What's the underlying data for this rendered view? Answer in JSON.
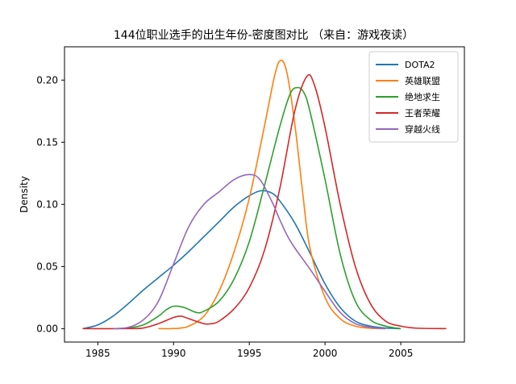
{
  "chart_data": {
    "type": "line",
    "title": "144位职业选手的出生年份-密度图对比 （来自：游戏夜读）",
    "xlabel": "",
    "ylabel": "Density",
    "xlim": [
      1982.8,
      2009.2
    ],
    "ylim": [
      -0.0108,
      0.2268
    ],
    "x_ticks": [
      1985,
      1990,
      1995,
      2000,
      2005
    ],
    "y_ticks": [
      0.0,
      0.05,
      0.1,
      0.15,
      0.2
    ],
    "x_tick_labels": [
      "1985",
      "1990",
      "1995",
      "2000",
      "2005"
    ],
    "y_tick_labels": [
      "0.00",
      "0.05",
      "0.10",
      "0.15",
      "0.20"
    ],
    "grid": false,
    "legend_position": "top-right",
    "series": [
      {
        "name": "DOTA2",
        "color": "#1f77b4",
        "points": [
          [
            1984,
            0.0
          ],
          [
            1985,
            0.003
          ],
          [
            1986,
            0.01
          ],
          [
            1987,
            0.02
          ],
          [
            1988,
            0.031
          ],
          [
            1989,
            0.041
          ],
          [
            1990,
            0.051
          ],
          [
            1991,
            0.062
          ],
          [
            1992,
            0.074
          ],
          [
            1993,
            0.086
          ],
          [
            1994,
            0.098
          ],
          [
            1995,
            0.107
          ],
          [
            1995.8,
            0.111
          ],
          [
            1996.5,
            0.109
          ],
          [
            1997,
            0.103
          ],
          [
            1998,
            0.085
          ],
          [
            1999,
            0.061
          ],
          [
            2000,
            0.036
          ],
          [
            2001,
            0.017
          ],
          [
            2002,
            0.006
          ],
          [
            2003,
            0.002
          ],
          [
            2004,
            0.0005
          ],
          [
            2005,
            0.0
          ]
        ]
      },
      {
        "name": "英雄联盟",
        "color": "#ff7f0e",
        "points": [
          [
            1989,
            0.0
          ],
          [
            1990,
            0.0
          ],
          [
            1990.5,
            0.0005
          ],
          [
            1991,
            0.002
          ],
          [
            1992,
            0.01
          ],
          [
            1993,
            0.03
          ],
          [
            1994,
            0.062
          ],
          [
            1995,
            0.105
          ],
          [
            1996,
            0.163
          ],
          [
            1996.7,
            0.205
          ],
          [
            1997.1,
            0.216
          ],
          [
            1997.5,
            0.205
          ],
          [
            1998,
            0.165
          ],
          [
            1998.5,
            0.112
          ],
          [
            1999,
            0.065
          ],
          [
            2000,
            0.025
          ],
          [
            2001,
            0.008
          ],
          [
            2002,
            0.002
          ],
          [
            2003,
            0.0003
          ],
          [
            2004,
            0.0
          ]
        ]
      },
      {
        "name": "绝地求生",
        "color": "#2ca02c",
        "points": [
          [
            1986,
            0.0
          ],
          [
            1987,
            0.0005
          ],
          [
            1988,
            0.003
          ],
          [
            1989,
            0.01
          ],
          [
            1989.5,
            0.015
          ],
          [
            1990,
            0.018
          ],
          [
            1990.7,
            0.017
          ],
          [
            1991.5,
            0.013
          ],
          [
            1992,
            0.014
          ],
          [
            1993,
            0.022
          ],
          [
            1994,
            0.04
          ],
          [
            1995,
            0.07
          ],
          [
            1996,
            0.115
          ],
          [
            1997,
            0.162
          ],
          [
            1997.7,
            0.189
          ],
          [
            1998.2,
            0.194
          ],
          [
            1998.6,
            0.19
          ],
          [
            1999,
            0.175
          ],
          [
            2000,
            0.12
          ],
          [
            2001,
            0.06
          ],
          [
            2002,
            0.022
          ],
          [
            2003,
            0.007
          ],
          [
            2004,
            0.002
          ],
          [
            2005,
            0.0
          ]
        ]
      },
      {
        "name": "王者荣耀",
        "color": "#d62728",
        "points": [
          [
            1984,
            0.0
          ],
          [
            1987,
            0.0
          ],
          [
            1988,
            0.0005
          ],
          [
            1989,
            0.004
          ],
          [
            1990,
            0.009
          ],
          [
            1990.5,
            0.01
          ],
          [
            1991,
            0.008
          ],
          [
            1992,
            0.004
          ],
          [
            1992.5,
            0.004
          ],
          [
            1993,
            0.006
          ],
          [
            1994,
            0.016
          ],
          [
            1995,
            0.033
          ],
          [
            1996,
            0.063
          ],
          [
            1997,
            0.112
          ],
          [
            1998,
            0.175
          ],
          [
            1998.8,
            0.203
          ],
          [
            1999.3,
            0.196
          ],
          [
            2000,
            0.162
          ],
          [
            2001,
            0.1
          ],
          [
            2002,
            0.05
          ],
          [
            2003,
            0.02
          ],
          [
            2004,
            0.006
          ],
          [
            2005,
            0.002
          ],
          [
            2006,
            0.0004
          ],
          [
            2008,
            0.0
          ]
        ]
      },
      {
        "name": "穿越火线",
        "color": "#9467bd",
        "points": [
          [
            1986,
            0.0
          ],
          [
            1987,
            0.001
          ],
          [
            1988,
            0.007
          ],
          [
            1989,
            0.022
          ],
          [
            1990,
            0.052
          ],
          [
            1991,
            0.082
          ],
          [
            1992,
            0.1
          ],
          [
            1993,
            0.11
          ],
          [
            1994,
            0.12
          ],
          [
            1995,
            0.124
          ],
          [
            1995.7,
            0.12
          ],
          [
            1996.5,
            0.102
          ],
          [
            1997,
            0.088
          ],
          [
            1997.5,
            0.075
          ],
          [
            1998,
            0.065
          ],
          [
            1999,
            0.048
          ],
          [
            2000,
            0.03
          ],
          [
            2001,
            0.013
          ],
          [
            2002,
            0.004
          ],
          [
            2003,
            0.001
          ],
          [
            2004,
            0.0
          ]
        ]
      }
    ]
  }
}
